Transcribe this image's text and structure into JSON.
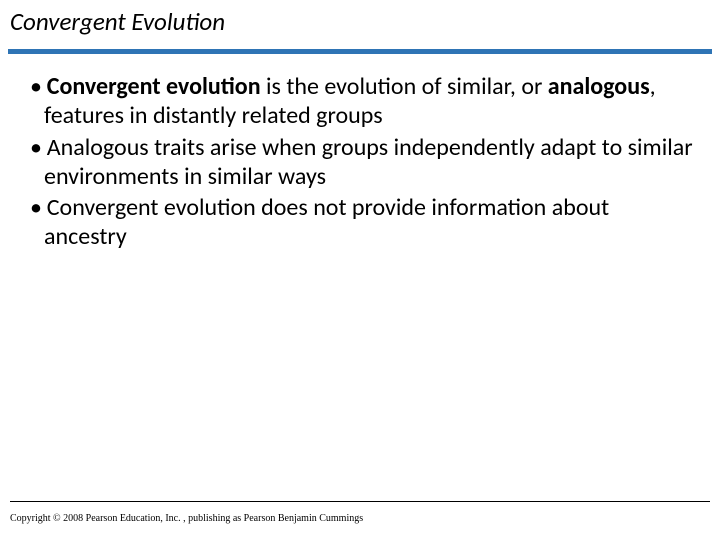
{
  "title": "Convergent Evolution",
  "rule_color": "#2e74b5",
  "bullets": {
    "b1_bold1": "Convergent evolution",
    "b1_mid": " is the evolution of similar, or ",
    "b1_bold2": "analogous",
    "b1_end": ", features in distantly related groups",
    "b2": "Analogous traits arise when groups independently adapt to similar environments in similar ways",
    "b3": "Convergent evolution does not provide information about ancestry"
  },
  "copyright": "Copyright © 2008 Pearson Education, Inc. , publishing as Pearson Benjamin Cummings",
  "bullet_char": "• "
}
